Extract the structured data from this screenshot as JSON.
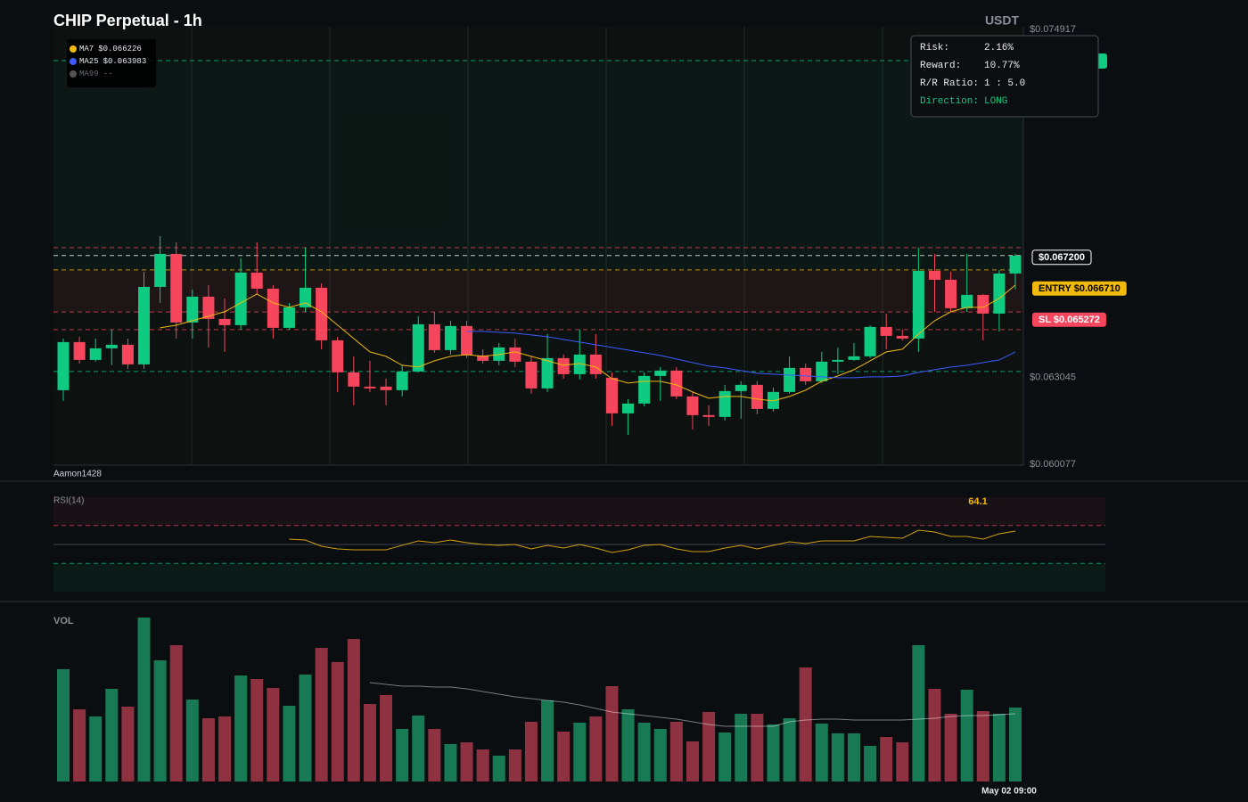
{
  "header": {
    "title": "CHIP Perpetual - 1h",
    "currency": "USDT",
    "watermark": "Aamon1428"
  },
  "risk_panel": {
    "rows": [
      {
        "label": "Risk:",
        "value": "2.16%"
      },
      {
        "label": "Reward:",
        "value": "10.77%"
      },
      {
        "label": "R/R Ratio:",
        "value": "1 : 5.0"
      },
      {
        "label": "Direction:",
        "value": "LONG"
      }
    ]
  },
  "chart_data": [
    {
      "type": "candlestick",
      "up_color": "#0ecb81",
      "down_color": "#f6465d",
      "open": [
        0.062605,
        0.064246,
        0.063638,
        0.064034,
        0.064155,
        0.063486,
        0.066131,
        0.067256,
        0.064915,
        0.065797,
        0.065037,
        0.064824,
        0.066618,
        0.06607,
        0.064733,
        0.065432,
        0.066101,
        0.064307,
        0.063213,
        0.062726,
        0.062726,
        0.062605,
        0.063243,
        0.064854,
        0.063973,
        0.064794,
        0.06379,
        0.063608,
        0.064064,
        0.063578,
        0.062666,
        0.063699,
        0.063152,
        0.063821,
        0.06303,
        0.061814,
        0.062149,
        0.063091,
        0.063274,
        0.062392,
        0.061754,
        0.061693,
        0.062574,
        0.062787,
        0.061966,
        0.062544,
        0.063365,
        0.062909,
        0.063578,
        0.063638,
        0.06376,
        0.064763,
        0.064459,
        0.064368,
        0.066678,
        0.066374,
        0.065402,
        0.065858,
        0.065219,
        0.066587
      ],
      "high": [
        0.064368,
        0.064429,
        0.064368,
        0.064672,
        0.064368,
        0.066648,
        0.067864,
        0.067651,
        0.06604,
        0.066192,
        0.065736,
        0.067104,
        0.067651,
        0.066192,
        0.065584,
        0.067469,
        0.066253,
        0.064429,
        0.06376,
        0.063608,
        0.063,
        0.063456,
        0.065128,
        0.06528,
        0.064976,
        0.064976,
        0.064003,
        0.064216,
        0.064368,
        0.06376,
        0.06452,
        0.063821,
        0.064672,
        0.06452,
        0.063213,
        0.062301,
        0.063213,
        0.063395,
        0.063395,
        0.062544,
        0.062088,
        0.062787,
        0.062909,
        0.062909,
        0.062696,
        0.06376,
        0.063517,
        0.063912,
        0.064064,
        0.064216,
        0.064824,
        0.065219,
        0.064672,
        0.067469,
        0.067256,
        0.066648,
        0.067256,
        0.065888,
        0.066709,
        0.067256
      ],
      "low": [
        0.06224,
        0.063517,
        0.063578,
        0.063456,
        0.063334,
        0.063334,
        0.065584,
        0.064368,
        0.064368,
        0.064064,
        0.063912,
        0.064672,
        0.065888,
        0.064368,
        0.064672,
        0.06528,
        0.064003,
        0.062544,
        0.062088,
        0.062544,
        0.062088,
        0.062392,
        0.063213,
        0.063882,
        0.063821,
        0.063699,
        0.063517,
        0.063456,
        0.063395,
        0.062483,
        0.062544,
        0.063,
        0.06297,
        0.063,
        0.061389,
        0.061085,
        0.062058,
        0.06224,
        0.062301,
        0.061267,
        0.061389,
        0.061571,
        0.061632,
        0.061784,
        0.061875,
        0.062483,
        0.062787,
        0.062848,
        0.063152,
        0.063608,
        0.063699,
        0.064003,
        0.064307,
        0.063912,
        0.06528,
        0.06528,
        0.06528,
        0.064307,
        0.064611,
        0.06604
      ],
      "close": [
        0.064246,
        0.063638,
        0.064034,
        0.064155,
        0.063486,
        0.066131,
        0.067256,
        0.064915,
        0.065797,
        0.065037,
        0.064824,
        0.066618,
        0.06607,
        0.064733,
        0.065432,
        0.066101,
        0.064307,
        0.063213,
        0.062726,
        0.062666,
        0.062605,
        0.063243,
        0.064854,
        0.063973,
        0.064794,
        0.06379,
        0.063608,
        0.064064,
        0.063578,
        0.062666,
        0.063699,
        0.063152,
        0.063821,
        0.063152,
        0.061814,
        0.062149,
        0.063091,
        0.063274,
        0.062392,
        0.061754,
        0.061693,
        0.062574,
        0.062787,
        0.061966,
        0.062544,
        0.063365,
        0.062909,
        0.063578,
        0.063638,
        0.06376,
        0.064763,
        0.064459,
        0.064368,
        0.066678,
        0.066374,
        0.065402,
        0.065858,
        0.065219,
        0.066587,
        0.067195
      ],
      "ylim": [
        0.060077,
        0.074917
      ],
      "yticks": [
        {
          "value": 0.074917,
          "label": "$0.074917"
        },
        {
          "value": 0.063045,
          "label": "$0.063045"
        },
        {
          "value": 0.060077,
          "label": "$0.060077"
        }
      ],
      "series": [
        {
          "name": "MA7",
          "color": "#f0b90b",
          "legend_label": "$0.066226",
          "values": [
            null,
            null,
            null,
            null,
            null,
            null,
            0.064733,
            0.064824,
            0.064976,
            0.065128,
            0.06528,
            0.065584,
            0.065888,
            0.065584,
            0.065432,
            0.065584,
            0.06528,
            0.064824,
            0.064368,
            0.063912,
            0.06376,
            0.063456,
            0.063395,
            0.063608,
            0.06376,
            0.063821,
            0.06376,
            0.063821,
            0.063912,
            0.06376,
            0.063608,
            0.063456,
            0.063517,
            0.063395,
            0.063,
            0.062848,
            0.062909,
            0.062909,
            0.062787,
            0.062544,
            0.062331,
            0.062392,
            0.062392,
            0.062301,
            0.06224,
            0.062392,
            0.062605,
            0.062909,
            0.063091,
            0.063304,
            0.063608,
            0.063912,
            0.064003,
            0.06452,
            0.064976,
            0.06528,
            0.065432,
            0.065432,
            0.065736,
            0.066192
          ]
        },
        {
          "name": "MA25",
          "color": "#3d5afe",
          "legend_label": "$0.063983",
          "values": [
            null,
            null,
            null,
            null,
            null,
            null,
            null,
            null,
            null,
            null,
            null,
            null,
            null,
            null,
            null,
            null,
            null,
            null,
            null,
            null,
            null,
            null,
            null,
            null,
            null,
            0.064611,
            0.064611,
            0.064581,
            0.06455,
            0.06449,
            0.064429,
            0.064338,
            0.064246,
            0.064155,
            0.064064,
            0.063973,
            0.063882,
            0.06379,
            0.063669,
            0.063547,
            0.063426,
            0.063365,
            0.063274,
            0.063182,
            0.063152,
            0.063122,
            0.063091,
            0.063061,
            0.06303,
            0.06303,
            0.063061,
            0.063061,
            0.063091,
            0.063213,
            0.063304,
            0.063395,
            0.063456,
            0.063547,
            0.063638,
            0.063912
          ]
        },
        {
          "name": "MA99",
          "color": "#555555",
          "legend_label": "--"
        }
      ],
      "levels": [
        {
          "value": 0.073853,
          "color": "#0ecb81"
        },
        {
          "value": 0.067469,
          "color": "#f6465d"
        },
        {
          "value": 0.0672,
          "label": "$0.067200",
          "color": "#ffffff"
        },
        {
          "value": 0.06671,
          "label": "ENTRY $0.066710",
          "color": "#f0b90b"
        },
        {
          "value": 0.065272,
          "label": "SL $0.065272",
          "color": "#f6465d"
        },
        {
          "value": 0.064672,
          "color": "#f6465d"
        },
        {
          "value": 0.063243,
          "color": "#0ecb81"
        }
      ]
    },
    {
      "type": "line",
      "title": "RSI(14)",
      "color": "#f0b90b",
      "ylim": [
        0,
        100
      ],
      "guides": [
        {
          "value": 70,
          "color": "#f6465d"
        },
        {
          "value": 50,
          "color": "#555b66"
        },
        {
          "value": 30,
          "color": "#0ecb81"
        }
      ],
      "values": [
        null,
        null,
        null,
        null,
        null,
        null,
        null,
        null,
        null,
        null,
        null,
        null,
        null,
        null,
        55.7,
        54.7,
        48.1,
        45.3,
        44.3,
        44.3,
        44.3,
        49.1,
        53.8,
        51.9,
        54.7,
        51.9,
        50.0,
        49.1,
        50.0,
        45.3,
        49.1,
        46.2,
        50.0,
        46.2,
        41.5,
        44.3,
        49.1,
        50.0,
        45.3,
        42.5,
        42.5,
        46.2,
        49.1,
        45.3,
        49.1,
        52.8,
        50.9,
        53.8,
        53.8,
        53.8,
        58.5,
        57.5,
        56.6,
        65.1,
        63.2,
        58.5,
        58.5,
        55.7,
        61.3,
        64.1
      ]
    },
    {
      "type": "bar",
      "title": "VOL",
      "up_color": "#177a55",
      "down_color": "#8e3140",
      "ylim": [
        0,
        185
      ],
      "categories": [
        null,
        null,
        null,
        null,
        null,
        null,
        null,
        null,
        null,
        null,
        null,
        null,
        null,
        null,
        null,
        null,
        null,
        null,
        null,
        null,
        null,
        null,
        null,
        null,
        null,
        null,
        null,
        null,
        null,
        null,
        null,
        null,
        null,
        null,
        null,
        null,
        null,
        null,
        null,
        null,
        null,
        null,
        null,
        null,
        null,
        null,
        null,
        null,
        null,
        null,
        null,
        null,
        null,
        null,
        null,
        null,
        null,
        null,
        null,
        "May 02 09:00"
      ],
      "values": [
        126,
        81,
        73,
        104,
        84,
        184,
        136,
        153,
        92,
        71,
        73,
        119,
        115,
        105,
        85,
        120,
        150,
        134,
        160,
        87,
        97,
        59,
        74,
        59,
        42,
        44,
        36,
        29,
        36,
        67,
        91,
        56,
        66,
        73,
        107,
        81,
        66,
        59,
        67,
        45,
        78,
        55,
        76,
        76,
        64,
        71,
        128,
        65,
        54,
        54,
        40,
        50,
        44,
        153,
        104,
        76,
        103,
        79,
        76,
        83
      ],
      "series": [
        {
          "color": "rgba(255,255,255,0.45)",
          "values": [
            null,
            null,
            null,
            null,
            null,
            null,
            null,
            null,
            null,
            null,
            null,
            null,
            null,
            null,
            null,
            null,
            null,
            null,
            null,
            111,
            109,
            107,
            107,
            106,
            106,
            104,
            101,
            98,
            95,
            93,
            91,
            89,
            86,
            82,
            78,
            76,
            74,
            72,
            70,
            67,
            64,
            62,
            62,
            62,
            62,
            67,
            69,
            70,
            70,
            69,
            69,
            69,
            69,
            70,
            71,
            73,
            74,
            74,
            75,
            76
          ]
        }
      ]
    }
  ]
}
